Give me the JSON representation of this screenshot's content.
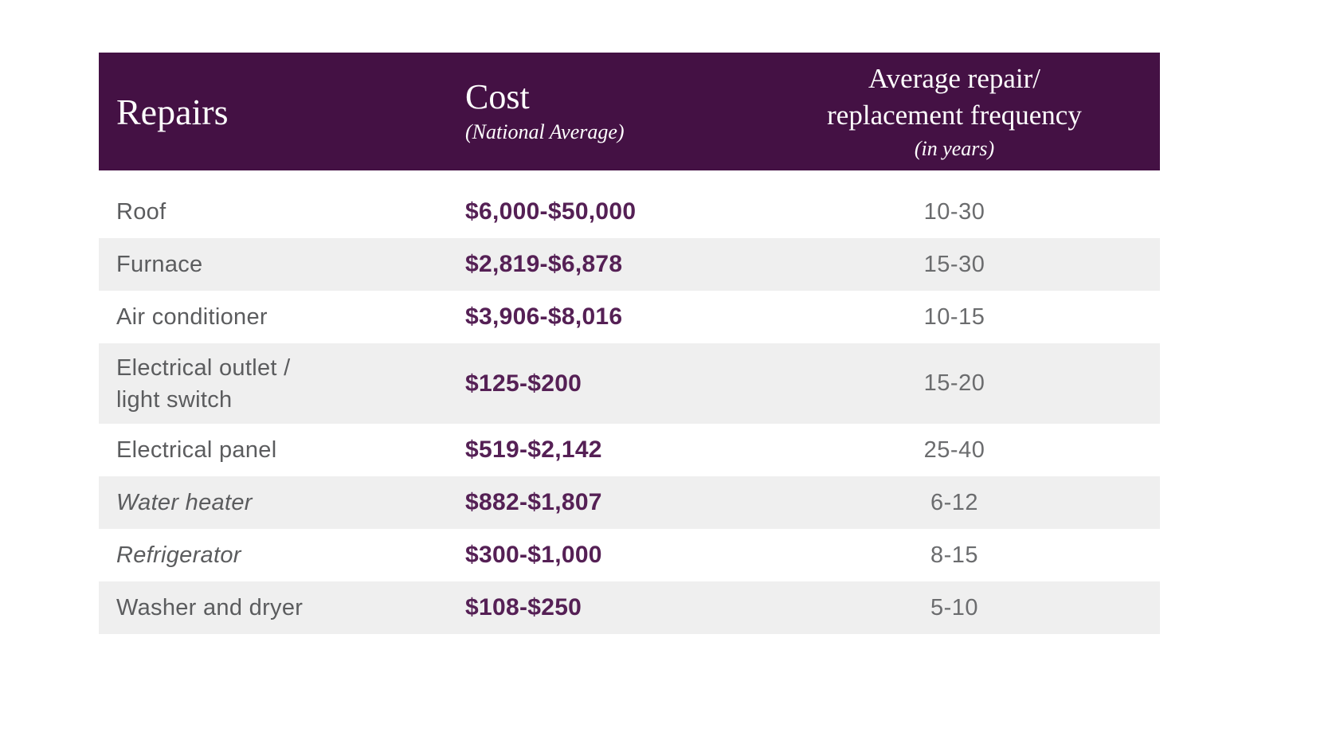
{
  "colors": {
    "header_bg": "#441144",
    "header_text": "#ffffff",
    "cost_value_text": "#552055",
    "repair_label_text": "#5b5c5e",
    "frequency_text": "#6b6c6e",
    "alt_row_bg": "#efefef",
    "page_bg": "#ffffff"
  },
  "header": {
    "repairs_label": "Repairs",
    "cost_label": "Cost",
    "cost_subtitle": "(National Average)",
    "freq_line1": "Average repair/",
    "freq_line2": "replacement frequency",
    "freq_subtitle": "(in years)"
  },
  "rows": [
    {
      "repair": "Roof",
      "cost": "$6,000-$50,000",
      "frequency": "10-30",
      "italic": false,
      "alt": false,
      "tall": false
    },
    {
      "repair": "Furnace",
      "cost": "$2,819-$6,878",
      "frequency": "15-30",
      "italic": false,
      "alt": true,
      "tall": false
    },
    {
      "repair": "Air conditioner",
      "cost": "$3,906-$8,016",
      "frequency": "10-15",
      "italic": false,
      "alt": false,
      "tall": false
    },
    {
      "repair": "Electrical outlet /\nlight switch",
      "cost": "$125-$200",
      "frequency": "15-20",
      "italic": false,
      "alt": true,
      "tall": true
    },
    {
      "repair": "Electrical panel",
      "cost": "$519-$2,142",
      "frequency": "25-40",
      "italic": false,
      "alt": false,
      "tall": false
    },
    {
      "repair": "Water heater",
      "cost": "$882-$1,807",
      "frequency": "6-12",
      "italic": true,
      "alt": true,
      "tall": false
    },
    {
      "repair": "Refrigerator",
      "cost": "$300-$1,000",
      "frequency": "8-15",
      "italic": true,
      "alt": false,
      "tall": false
    },
    {
      "repair": "Washer and dryer",
      "cost": "$108-$250",
      "frequency": "5-10",
      "italic": false,
      "alt": true,
      "tall": false
    }
  ],
  "chart_data": {
    "type": "table",
    "title": "",
    "columns": [
      "Repairs",
      "Cost (National Average)",
      "Average repair/replacement frequency (in years)"
    ],
    "rows": [
      [
        "Roof",
        "$6,000-$50,000",
        "10-30"
      ],
      [
        "Furnace",
        "$2,819-$6,878",
        "15-30"
      ],
      [
        "Air conditioner",
        "$3,906-$8,016",
        "10-15"
      ],
      [
        "Electrical outlet / light switch",
        "$125-$200",
        "15-20"
      ],
      [
        "Electrical panel",
        "$519-$2,142",
        "25-40"
      ],
      [
        "Water heater",
        "$882-$1,807",
        "6-12"
      ],
      [
        "Refrigerator",
        "$300-$1,000",
        "8-15"
      ],
      [
        "Washer and dryer",
        "$108-$250",
        "5-10"
      ]
    ],
    "legend_position": "none",
    "grid": false
  }
}
